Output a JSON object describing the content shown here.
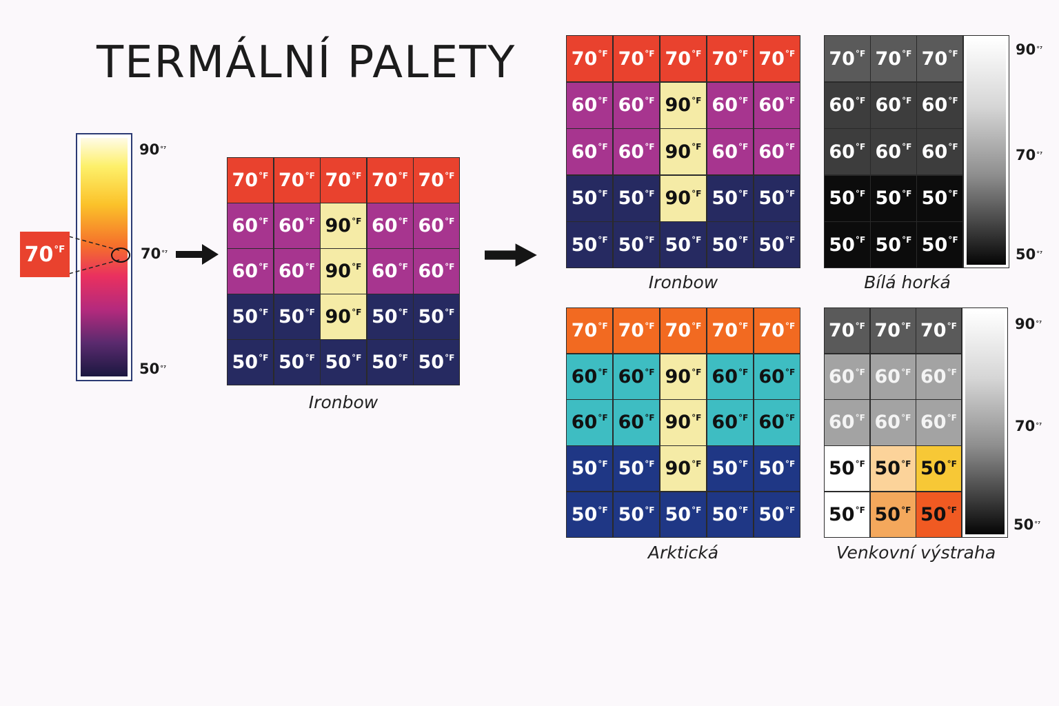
{
  "title": "TERMÁLNÍ PALETY",
  "unit_f": "°F",
  "unit_bar": "°⁷",
  "colors": {
    "red": "#e9422e",
    "purple": "#a7358f",
    "navy": "#262a61",
    "yellow": "#f5eba6",
    "orange": "#f26a21",
    "teal": "#3ebdc2",
    "blue": "#1f3785",
    "gray_dark": "#5a5a5a",
    "gray_mid": "#3d3d3d",
    "black": "#0c0c0c",
    "gray_light": "#a3a3a3",
    "white": "#ffffff",
    "peach": "#fcd39a",
    "amber": "#f7c836",
    "apricot": "#f4a85c",
    "flame": "#f05a22"
  },
  "legend_scale": {
    "sample_label": "70",
    "ticks": [
      "90",
      "70",
      "50"
    ]
  },
  "palettes": {
    "main": {
      "caption": "Ironbow",
      "rows": [
        [
          [
            "70",
            "red"
          ],
          [
            "70",
            "red"
          ],
          [
            "70",
            "red"
          ],
          [
            "70",
            "red"
          ],
          [
            "70",
            "red"
          ]
        ],
        [
          [
            "60",
            "purple"
          ],
          [
            "60",
            "purple"
          ],
          [
            "90",
            "yellow"
          ],
          [
            "60",
            "purple"
          ],
          [
            "60",
            "purple"
          ]
        ],
        [
          [
            "60",
            "purple"
          ],
          [
            "60",
            "purple"
          ],
          [
            "90",
            "yellow"
          ],
          [
            "60",
            "purple"
          ],
          [
            "60",
            "purple"
          ]
        ],
        [
          [
            "50",
            "navy"
          ],
          [
            "50",
            "navy"
          ],
          [
            "90",
            "yellow"
          ],
          [
            "50",
            "navy"
          ],
          [
            "50",
            "navy"
          ]
        ],
        [
          [
            "50",
            "navy"
          ],
          [
            "50",
            "navy"
          ],
          [
            "50",
            "navy"
          ],
          [
            "50",
            "navy"
          ],
          [
            "50",
            "navy"
          ]
        ]
      ]
    },
    "ironbow": {
      "caption": "Ironbow",
      "rows": [
        [
          [
            "70",
            "red"
          ],
          [
            "70",
            "red"
          ],
          [
            "70",
            "red"
          ],
          [
            "70",
            "red"
          ],
          [
            "70",
            "red"
          ]
        ],
        [
          [
            "60",
            "purple"
          ],
          [
            "60",
            "purple"
          ],
          [
            "90",
            "yellow"
          ],
          [
            "60",
            "purple"
          ],
          [
            "60",
            "purple"
          ]
        ],
        [
          [
            "60",
            "purple"
          ],
          [
            "60",
            "purple"
          ],
          [
            "90",
            "yellow"
          ],
          [
            "60",
            "purple"
          ],
          [
            "60",
            "purple"
          ]
        ],
        [
          [
            "50",
            "navy"
          ],
          [
            "50",
            "navy"
          ],
          [
            "90",
            "yellow"
          ],
          [
            "50",
            "navy"
          ],
          [
            "50",
            "navy"
          ]
        ],
        [
          [
            "50",
            "navy"
          ],
          [
            "50",
            "navy"
          ],
          [
            "50",
            "navy"
          ],
          [
            "50",
            "navy"
          ],
          [
            "50",
            "navy"
          ]
        ]
      ]
    },
    "white_hot": {
      "caption": "Bílá horká",
      "ticks": [
        "90",
        "70",
        "50"
      ],
      "rows": [
        [
          [
            "70",
            "gray_dark"
          ],
          [
            "70",
            "gray_dark"
          ],
          [
            "70",
            "gray_dark"
          ]
        ],
        [
          [
            "60",
            "gray_mid"
          ],
          [
            "60",
            "gray_mid"
          ],
          [
            "60",
            "gray_mid"
          ]
        ],
        [
          [
            "60",
            "gray_mid"
          ],
          [
            "60",
            "gray_mid"
          ],
          [
            "60",
            "gray_mid"
          ]
        ],
        [
          [
            "50",
            "black"
          ],
          [
            "50",
            "black"
          ],
          [
            "50",
            "black"
          ]
        ],
        [
          [
            "50",
            "black"
          ],
          [
            "50",
            "black"
          ],
          [
            "50",
            "black"
          ]
        ]
      ]
    },
    "arctic": {
      "caption": "Arktická",
      "rows": [
        [
          [
            "70",
            "orange"
          ],
          [
            "70",
            "orange"
          ],
          [
            "70",
            "orange"
          ],
          [
            "70",
            "orange"
          ],
          [
            "70",
            "orange"
          ]
        ],
        [
          [
            "60",
            "teal"
          ],
          [
            "60",
            "teal"
          ],
          [
            "90",
            "yellow"
          ],
          [
            "60",
            "teal"
          ],
          [
            "60",
            "teal"
          ]
        ],
        [
          [
            "60",
            "teal"
          ],
          [
            "60",
            "teal"
          ],
          [
            "90",
            "yellow"
          ],
          [
            "60",
            "teal"
          ],
          [
            "60",
            "teal"
          ]
        ],
        [
          [
            "50",
            "blue"
          ],
          [
            "50",
            "blue"
          ],
          [
            "90",
            "yellow"
          ],
          [
            "50",
            "blue"
          ],
          [
            "50",
            "blue"
          ]
        ],
        [
          [
            "50",
            "blue"
          ],
          [
            "50",
            "blue"
          ],
          [
            "50",
            "blue"
          ],
          [
            "50",
            "blue"
          ],
          [
            "50",
            "blue"
          ]
        ]
      ]
    },
    "outdoor_alert": {
      "caption": "Venkovní výstraha",
      "ticks": [
        "90",
        "70",
        "50"
      ],
      "rows": [
        [
          [
            "70",
            "gray_dark"
          ],
          [
            "70",
            "gray_dark"
          ],
          [
            "70",
            "gray_dark"
          ]
        ],
        [
          [
            "60",
            "gray_light"
          ],
          [
            "60",
            "gray_light"
          ],
          [
            "60",
            "gray_light"
          ]
        ],
        [
          [
            "60",
            "gray_light"
          ],
          [
            "60",
            "gray_light"
          ],
          [
            "60",
            "gray_light"
          ]
        ],
        [
          [
            "50",
            "white"
          ],
          [
            "50",
            "peach"
          ],
          [
            "50",
            "amber"
          ]
        ],
        [
          [
            "50",
            "white"
          ],
          [
            "50",
            "apricot"
          ],
          [
            "50",
            "flame"
          ]
        ]
      ]
    }
  }
}
